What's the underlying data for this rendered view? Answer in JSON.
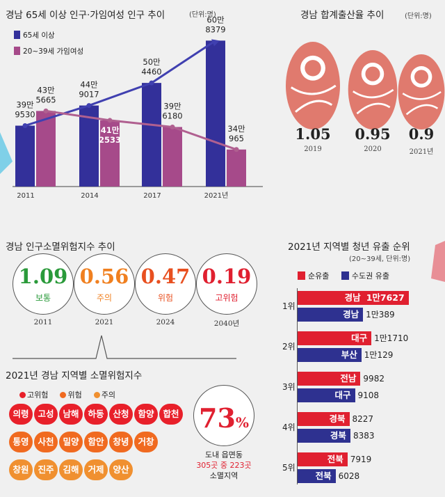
{
  "population": {
    "title": "경남 65세 이상 인구·가임여성 인구 추이",
    "unit": "(단위:명)",
    "chart_data": {
      "type": "bar",
      "categories": [
        "2011",
        "2014",
        "2017",
        "2021년"
      ],
      "series": [
        {
          "name": "65세 이상",
          "values": [
            399530,
            449017,
            504460,
            608379
          ],
          "labels": [
            "39만\n9530",
            "44만\n9017",
            "50만\n4460",
            "60만\n8379"
          ],
          "color": "#33309a"
        },
        {
          "name": "20~39세 가임여성",
          "values": [
            435665,
            412533,
            396180,
            340965
          ],
          "labels": [
            "43만\n5665",
            "41만\n2533",
            "39만\n6180",
            "34만\n965"
          ],
          "color": "#a64a8a"
        }
      ]
    }
  },
  "birthrate": {
    "title": "경남 합계출산율 추이",
    "unit": "(단위:명)",
    "chart_data": {
      "type": "bar",
      "categories": [
        "2019",
        "2020",
        "2021년"
      ],
      "values": [
        1.05,
        0.95,
        0.9
      ],
      "labels": [
        "1.05",
        "0.95",
        "0.9"
      ],
      "color": "#e07a6e"
    }
  },
  "extinction": {
    "title": "경남 인구소멸위험지수 추이",
    "items": [
      {
        "value": "1.09",
        "label": "보통",
        "year": "2011",
        "color": "#2a9a3a"
      },
      {
        "value": "0.56",
        "label": "주의",
        "year": "2021",
        "color": "#f08020"
      },
      {
        "value": "0.47",
        "label": "위험",
        "year": "2024",
        "color": "#e85020"
      },
      {
        "value": "0.19",
        "label": "고위험",
        "year": "2040년",
        "color": "#e02030"
      }
    ]
  },
  "regional": {
    "title": "2021년 경남 지역별 소멸위험지수",
    "legend": [
      {
        "label": "고위험",
        "color": "#e8202a"
      },
      {
        "label": "위험",
        "color": "#f06a20"
      },
      {
        "label": "주의",
        "color": "#f09030"
      }
    ],
    "rows": [
      [
        {
          "name": "의령",
          "level": 0
        },
        {
          "name": "고성",
          "level": 0
        },
        {
          "name": "남해",
          "level": 0
        },
        {
          "name": "하동",
          "level": 0
        },
        {
          "name": "산청",
          "level": 0
        },
        {
          "name": "함양",
          "level": 0
        },
        {
          "name": "합천",
          "level": 0
        }
      ],
      [
        {
          "name": "통영",
          "level": 1
        },
        {
          "name": "사천",
          "level": 1
        },
        {
          "name": "밀양",
          "level": 1
        },
        {
          "name": "함안",
          "level": 1
        },
        {
          "name": "창녕",
          "level": 1
        },
        {
          "name": "거창",
          "level": 1
        }
      ],
      [
        {
          "name": "창원",
          "level": 2
        },
        {
          "name": "진주",
          "level": 2
        },
        {
          "name": "김해",
          "level": 2
        },
        {
          "name": "거제",
          "level": 2
        },
        {
          "name": "양산",
          "level": 2
        }
      ]
    ],
    "percent": "73",
    "percent_sign": "%",
    "caption_line1": "도내 읍면동",
    "caption_line2": "305곳 중 223곳",
    "caption_line3": "소멸지역"
  },
  "youth": {
    "title": "2021년 지역별 청년 유출 순위",
    "unit": "(20~39세, 단위:명)",
    "legend": [
      {
        "label": "순유출",
        "color": "#e02030"
      },
      {
        "label": "수도권 유출",
        "color": "#2e3190"
      }
    ],
    "chart_data": {
      "type": "bar",
      "ranks": [
        "1위",
        "2위",
        "3위",
        "4위",
        "5위"
      ],
      "series": [
        {
          "name": "순유출",
          "regions": [
            "경남",
            "대구",
            "전남",
            "경북",
            "전북"
          ],
          "values": [
            17627,
            11710,
            9982,
            8227,
            7919
          ],
          "labels": [
            "1만7627",
            "1만1710",
            "9982",
            "8227",
            "7919"
          ]
        },
        {
          "name": "수도권 유출",
          "regions": [
            "경남",
            "부산",
            "대구",
            "경북",
            "전북"
          ],
          "values": [
            10389,
            10129,
            9108,
            8383,
            6028
          ],
          "labels": [
            "1만389",
            "1만129",
            "9108",
            "8383",
            "6028"
          ]
        }
      ]
    }
  }
}
